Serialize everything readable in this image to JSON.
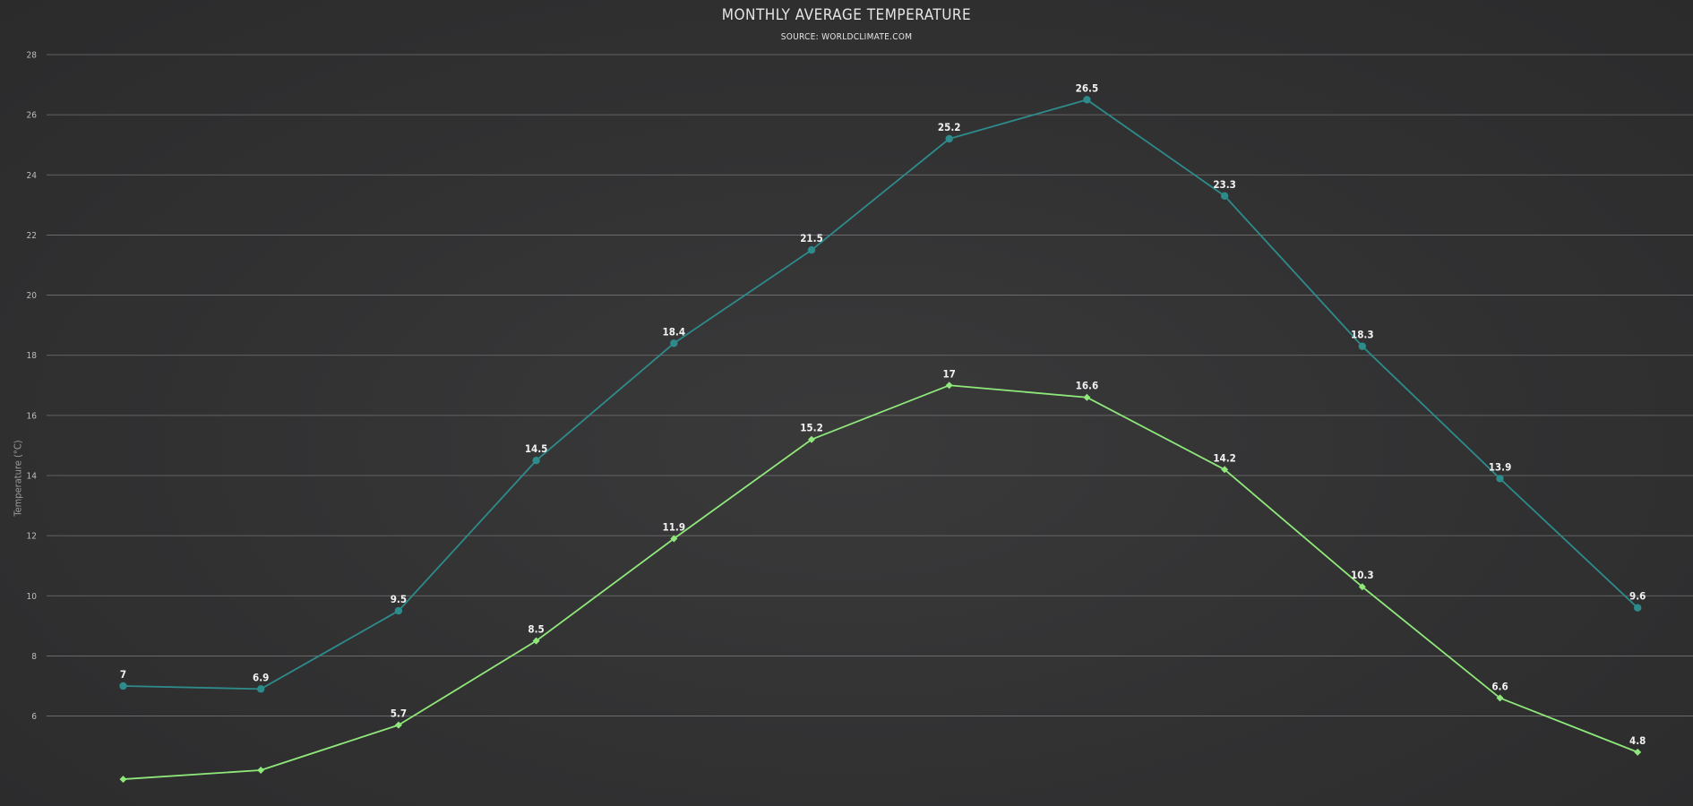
{
  "chart_data": {
    "type": "line",
    "title": "MONTHLY AVERAGE TEMPERATURE",
    "subtitle": "SOURCE: WORLDCLIMATE.COM",
    "xlabel": "",
    "ylabel": "Temperature (°C)",
    "ylim": [
      4.2,
      28
    ],
    "yticks": [
      6,
      8,
      10,
      12,
      14,
      16,
      18,
      20,
      22,
      24,
      26,
      28
    ],
    "grid": true,
    "x": [
      1,
      2,
      3,
      4,
      5,
      6,
      7,
      8,
      9,
      10,
      11,
      12
    ],
    "series": [
      {
        "color": "#2e8b8b",
        "marker": "circle",
        "values": [
          7,
          6.9,
          9.5,
          14.5,
          18.4,
          21.5,
          25.2,
          26.5,
          23.3,
          18.3,
          13.9,
          9.6
        ]
      },
      {
        "color": "#8fe87a",
        "marker": "diamond",
        "values": [
          3.9,
          4.2,
          5.7,
          8.5,
          11.9,
          15.2,
          17,
          16.6,
          14.2,
          10.3,
          6.6,
          4.8
        ],
        "labels": [
          null,
          null,
          "5.7",
          "8.5",
          "11.9",
          "15.2",
          "17",
          "16.6",
          "14.2",
          "10.3",
          "6.6",
          "4.8"
        ]
      }
    ]
  }
}
